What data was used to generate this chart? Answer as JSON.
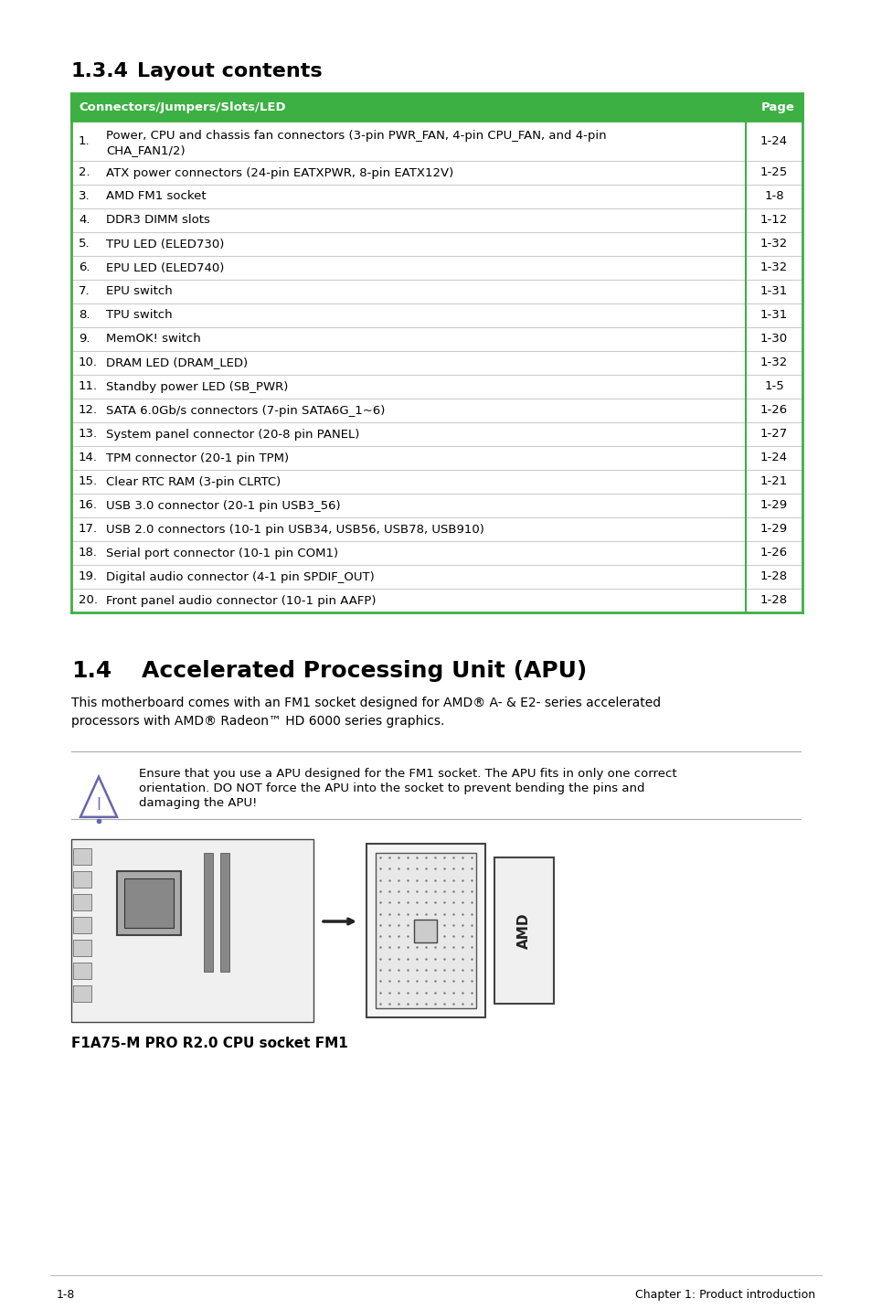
{
  "page_bg": "#ffffff",
  "section_title_134": "1.3.4",
  "section_title_134_text": "Layout contents",
  "table_header_bg": "#3cb043",
  "table_header_text": "Connectors/Jumpers/Slots/LED",
  "table_header_page": "Page",
  "table_border_color": "#3cb043",
  "table_rows": [
    [
      "1.",
      "Power, CPU and chassis fan connectors (3-pin PWR_FAN, 4-pin CPU_FAN, and 4-pin\nCHA_FAN1/2)",
      "1-24",
      true
    ],
    [
      "2.",
      "ATX power connectors (24-pin EATXPWR, 8-pin EATX12V)",
      "1-25",
      false
    ],
    [
      "3.",
      "AMD FM1 socket",
      "1-8",
      false
    ],
    [
      "4.",
      "DDR3 DIMM slots",
      "1-12",
      false
    ],
    [
      "5.",
      "TPU LED (ELED730)",
      "1-32",
      false
    ],
    [
      "6.",
      "EPU LED (ELED740)",
      "1-32",
      false
    ],
    [
      "7.",
      "EPU switch",
      "1-31",
      false
    ],
    [
      "8.",
      "TPU switch",
      "1-31",
      false
    ],
    [
      "9.",
      "MemOK! switch",
      "1-30",
      false
    ],
    [
      "10.",
      "DRAM LED (DRAM_LED)",
      "1-32",
      false
    ],
    [
      "11.",
      "Standby power LED (SB_PWR)",
      "1-5",
      false
    ],
    [
      "12.",
      "SATA 6.0Gb/s connectors (7-pin SATA6G_1~6)",
      "1-26",
      false
    ],
    [
      "13.",
      "System panel connector (20-8 pin PANEL)",
      "1-27",
      false
    ],
    [
      "14.",
      "TPM connector (20-1 pin TPM)",
      "1-24",
      false
    ],
    [
      "15.",
      "Clear RTC RAM (3-pin CLRTC)",
      "1-21",
      false
    ],
    [
      "16.",
      "USB 3.0 connector (20-1 pin USB3_56)",
      "1-29",
      false
    ],
    [
      "17.",
      "USB 2.0 connectors (10-1 pin USB34, USB56, USB78, USB910)",
      "1-29",
      false
    ],
    [
      "18.",
      "Serial port connector (10-1 pin COM1)",
      "1-26",
      false
    ],
    [
      "19.",
      "Digital audio connector (4-1 pin SPDIF_OUT)",
      "1-28",
      false
    ],
    [
      "20.",
      "Front panel audio connector (10-1 pin AAFP)",
      "1-28",
      false
    ]
  ],
  "section_title_14": "1.4",
  "section_title_14_text": "Accelerated Processing Unit (APU)",
  "apu_line1": "This motherboard comes with an FM1 socket designed for AMD® A- & E2- series accelerated",
  "apu_line2": "processors with AMD® Radeon™ HD 6000 series graphics.",
  "note_line1": "Ensure that you use a APU designed for the FM1 socket. The APU fits in only one correct",
  "note_line2": "orientation. DO NOT force the APU into the socket to prevent bending the pins and",
  "note_line3": "damaging the APU!",
  "image_caption": "F1A75-M PRO R2.0 CPU socket FM1",
  "footer_left": "1-8",
  "footer_right": "Chapter 1: Product introduction"
}
